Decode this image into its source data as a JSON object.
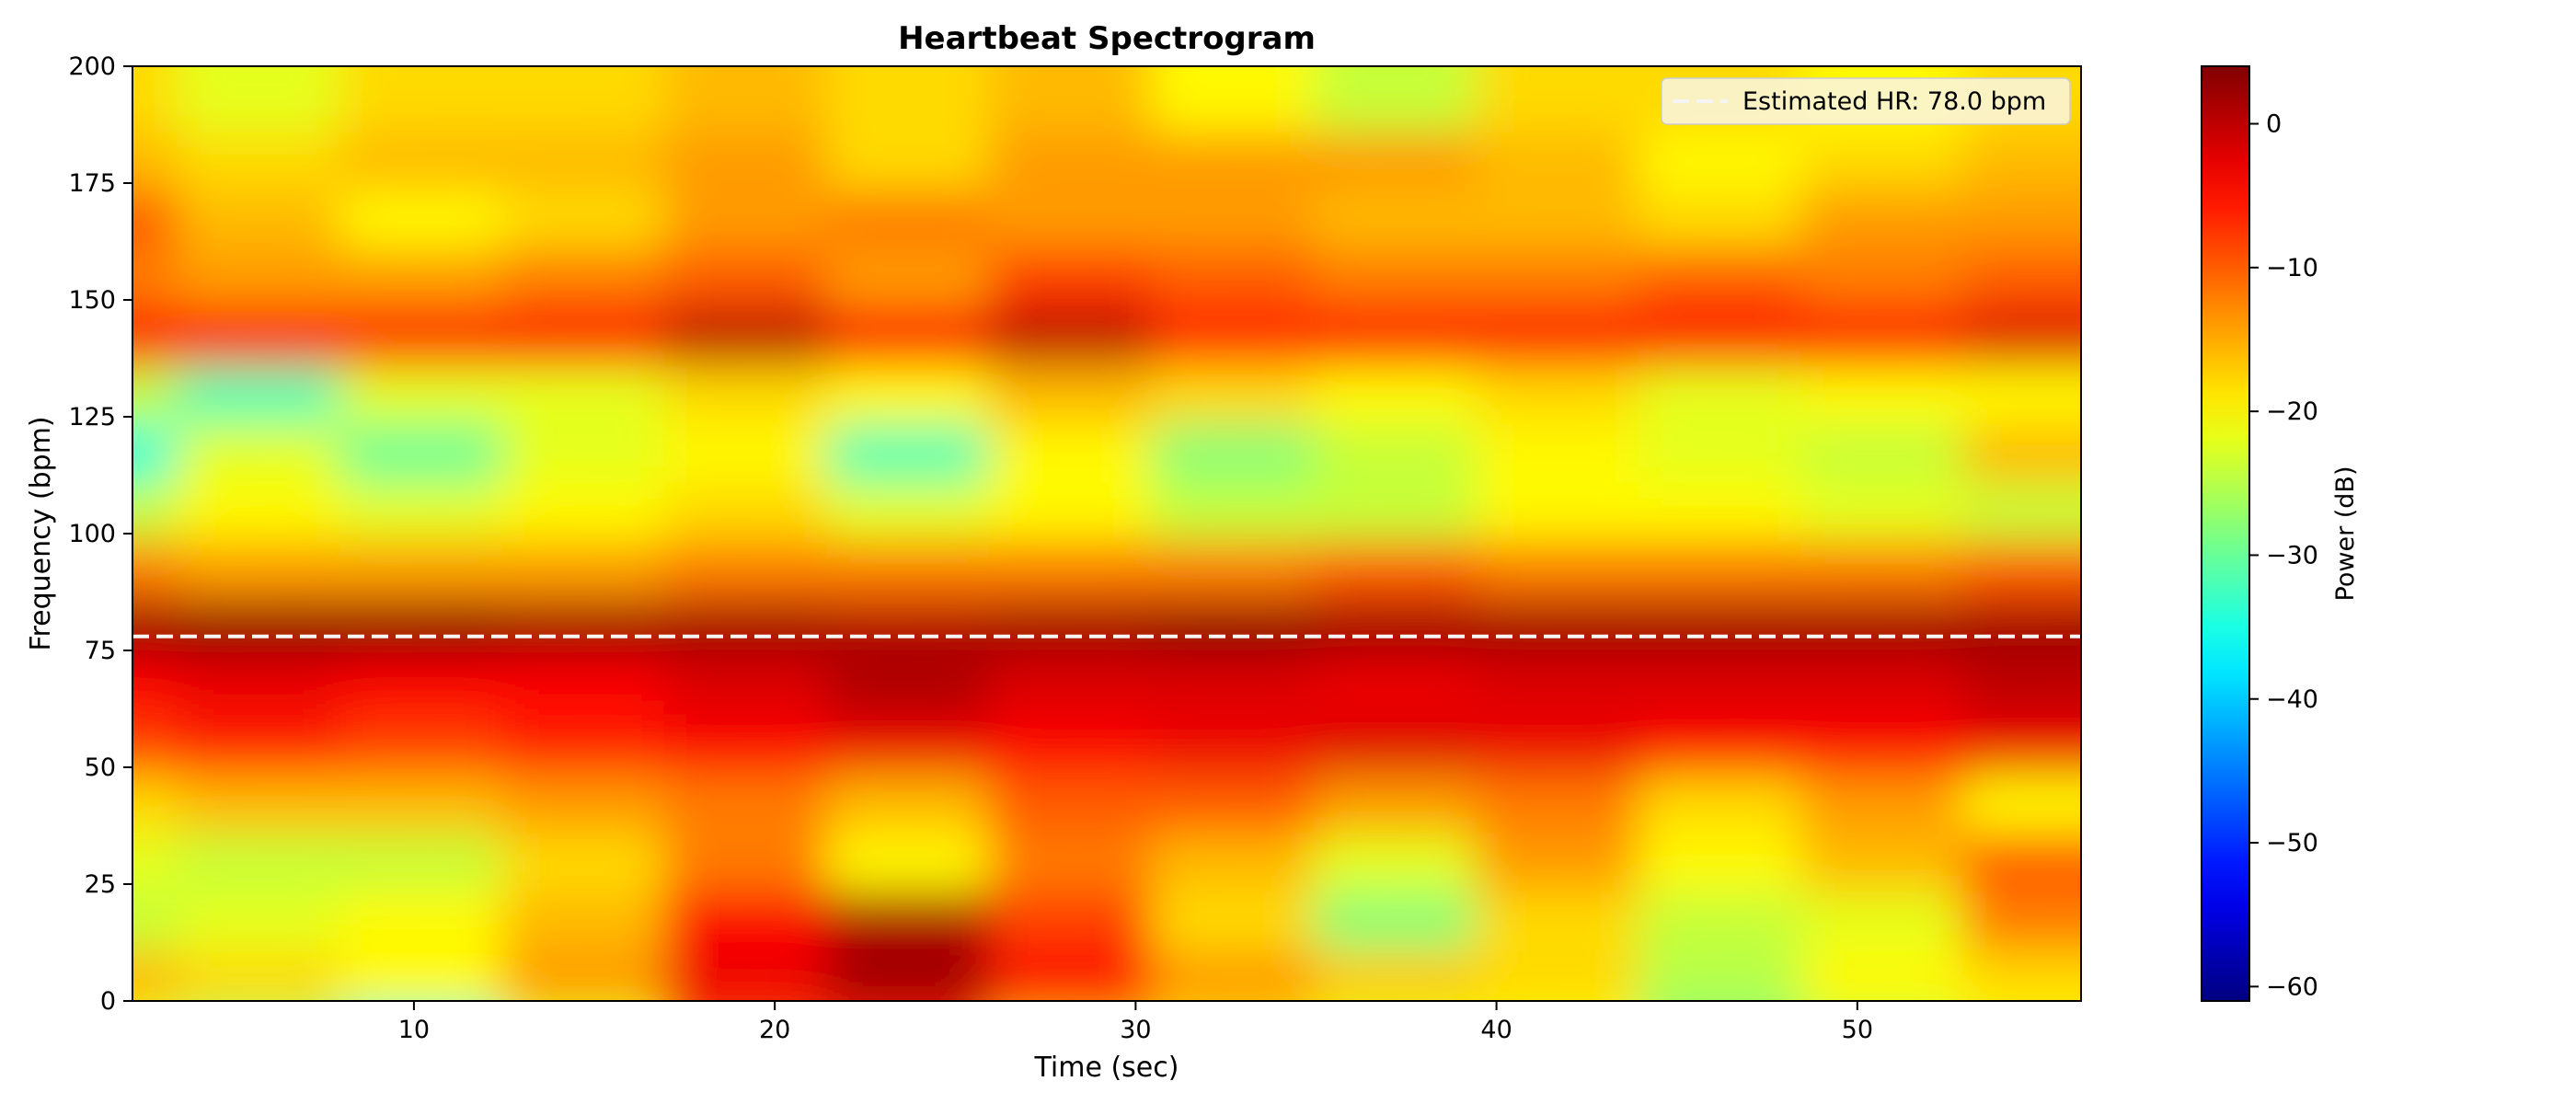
{
  "chart_data": {
    "type": "heatmap",
    "title": "Heartbeat Spectrogram",
    "xlabel": "Time (sec)",
    "ylabel": "Frequency (bpm)",
    "xlim": [
      2.2,
      56.2
    ],
    "ylim": [
      0,
      200
    ],
    "x_ticks": [
      10,
      20,
      30,
      40,
      50
    ],
    "y_ticks": [
      0,
      25,
      50,
      75,
      100,
      125,
      150,
      175,
      200
    ],
    "grid": false,
    "colormap": "jet",
    "colorbar": {
      "label": "Power (dB)",
      "range": [
        -61,
        4
      ],
      "ticks": [
        0,
        -10,
        -20,
        -30,
        -40,
        -50,
        -60
      ]
    },
    "time_bins": [
      2.2,
      6.7,
      11.2,
      15.7,
      20.2,
      24.7,
      29.2,
      33.7,
      38.2,
      42.7,
      47.2,
      51.7,
      56.2
    ],
    "freq_bins": [
      0,
      12.5,
      25,
      37.5,
      50,
      62.5,
      75,
      87.5,
      100,
      112.5,
      125,
      137.5,
      150,
      162.5,
      175,
      187.5,
      200
    ],
    "power_db": [
      [
        -22,
        -26,
        -34,
        -22,
        -8,
        -6,
        -15,
        -18,
        -22,
        -20,
        -28,
        -24,
        -20
      ],
      [
        -16,
        -18,
        -20,
        -14,
        -3,
        2,
        -4,
        -14,
        -17,
        -18,
        -25,
        -20,
        -18
      ],
      [
        -24,
        -22,
        -20,
        -16,
        -4,
        1,
        -8,
        -18,
        -28,
        -18,
        -24,
        -22,
        -12
      ],
      [
        -22,
        -24,
        -24,
        -18,
        -12,
        -20,
        -12,
        -16,
        -22,
        -14,
        -20,
        -16,
        -10
      ],
      [
        -18,
        -16,
        -16,
        -14,
        -12,
        -16,
        -10,
        -10,
        -14,
        -12,
        -18,
        -14,
        -20
      ],
      [
        -8,
        -6,
        -8,
        -6,
        -4,
        -3,
        -4,
        -3,
        -2,
        -3,
        -4,
        -4,
        -3
      ],
      [
        -4,
        -3,
        -4,
        -4,
        -2,
        1,
        -2,
        -2,
        -3,
        -2,
        -2,
        -2,
        0
      ],
      [
        2,
        3,
        3,
        2,
        2,
        1,
        2,
        3,
        2,
        2,
        2,
        2,
        2
      ],
      [
        -12,
        -14,
        -14,
        -14,
        -12,
        -12,
        -12,
        -12,
        -10,
        -12,
        -12,
        -12,
        -10
      ],
      [
        -24,
        -20,
        -22,
        -20,
        -18,
        -22,
        -20,
        -24,
        -24,
        -20,
        -20,
        -22,
        -24
      ],
      [
        -34,
        -22,
        -30,
        -22,
        -20,
        -32,
        -20,
        -28,
        -24,
        -20,
        -22,
        -24,
        -16
      ],
      [
        -24,
        -32,
        -22,
        -22,
        -18,
        -20,
        -16,
        -18,
        -20,
        -18,
        -22,
        -20,
        -20
      ],
      [
        -4,
        -4,
        -4,
        -4,
        0,
        -4,
        0,
        -6,
        -4,
        -4,
        -4,
        -4,
        -2
      ],
      [
        -12,
        -14,
        -14,
        -12,
        -10,
        -14,
        -8,
        -10,
        -12,
        -12,
        -10,
        -12,
        -10
      ],
      [
        -10,
        -16,
        -20,
        -18,
        -14,
        -12,
        -14,
        -14,
        -16,
        -16,
        -18,
        -14,
        -14
      ],
      [
        -16,
        -18,
        -16,
        -16,
        -14,
        -18,
        -14,
        -14,
        -14,
        -16,
        -20,
        -18,
        -16
      ],
      [
        -18,
        -22,
        -18,
        -18,
        -16,
        -18,
        -16,
        -20,
        -24,
        -18,
        -18,
        -20,
        -18
      ]
    ],
    "series": [
      {
        "name": "Estimated HR: 78.0 bpm",
        "type": "hline",
        "y": 78.0,
        "color": "#f5f5f5",
        "style": "dashed"
      }
    ],
    "legend_placement": "top-right"
  }
}
